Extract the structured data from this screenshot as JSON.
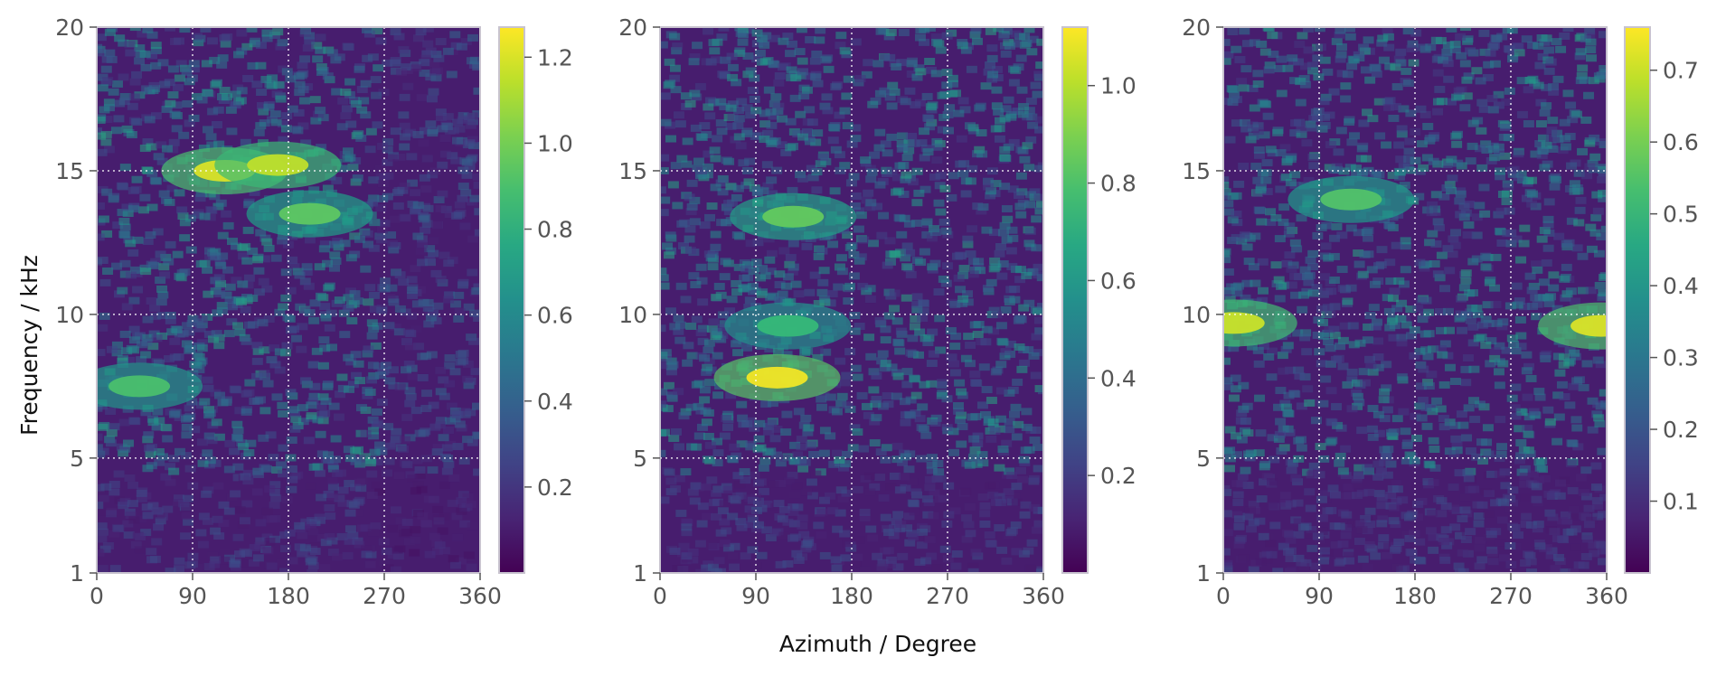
{
  "figure": {
    "xlabel": "Azimuth / Degree",
    "ylabel": "Frequency / kHz"
  },
  "chart_data": [
    {
      "type": "heatmap",
      "colormap": "viridis",
      "xlabel": "Azimuth / Degree",
      "ylabel": "Frequency / kHz",
      "xlim": [
        0,
        360
      ],
      "ylim": [
        1,
        20
      ],
      "xticks": [
        "0",
        "90",
        "180",
        "270",
        "360"
      ],
      "yticks": [
        "1",
        "5",
        "10",
        "15",
        "20"
      ],
      "grid": true,
      "colorbar": {
        "min": 0.0,
        "max": 1.27,
        "ticks": [
          "0.2",
          "0.4",
          "0.6",
          "0.8",
          "1.0",
          "1.2"
        ],
        "tick_values": [
          0.2,
          0.4,
          0.6,
          0.8,
          1.0,
          1.2
        ]
      },
      "features": [
        {
          "azimuth": 120,
          "frequency": 15,
          "value": 1.2
        },
        {
          "azimuth": 170,
          "frequency": 15.2,
          "value": 1.15
        },
        {
          "azimuth": 40,
          "frequency": 7.5,
          "value": 0.9
        },
        {
          "azimuth": 200,
          "frequency": 13.5,
          "value": 0.95
        }
      ]
    },
    {
      "type": "heatmap",
      "colormap": "viridis",
      "xlim": [
        0,
        360
      ],
      "ylim": [
        1,
        20
      ],
      "xticks": [
        "0",
        "90",
        "180",
        "270",
        "360"
      ],
      "yticks": [
        "1",
        "5",
        "10",
        "15",
        "20"
      ],
      "grid": true,
      "colorbar": {
        "min": 0.0,
        "max": 1.12,
        "ticks": [
          "0.2",
          "0.4",
          "0.6",
          "0.8",
          "1.0"
        ],
        "tick_values": [
          0.2,
          0.4,
          0.6,
          0.8,
          1.0
        ]
      },
      "features": [
        {
          "azimuth": 110,
          "frequency": 7.8,
          "value": 1.1
        },
        {
          "azimuth": 125,
          "frequency": 13.4,
          "value": 0.85
        },
        {
          "azimuth": 120,
          "frequency": 9.6,
          "value": 0.75
        }
      ]
    },
    {
      "type": "heatmap",
      "colormap": "viridis",
      "xlim": [
        0,
        360
      ],
      "ylim": [
        1,
        20
      ],
      "xticks": [
        "0",
        "90",
        "180",
        "270",
        "360"
      ],
      "yticks": [
        "1",
        "5",
        "10",
        "15",
        "20"
      ],
      "grid": true,
      "colorbar": {
        "min": 0.0,
        "max": 0.76,
        "ticks": [
          "0.1",
          "0.2",
          "0.3",
          "0.4",
          "0.5",
          "0.6",
          "0.7"
        ],
        "tick_values": [
          0.1,
          0.2,
          0.3,
          0.4,
          0.5,
          0.6,
          0.7
        ]
      },
      "features": [
        {
          "azimuth": 10,
          "frequency": 9.7,
          "value": 0.7
        },
        {
          "azimuth": 355,
          "frequency": 9.6,
          "value": 0.72
        },
        {
          "azimuth": 120,
          "frequency": 14,
          "value": 0.55
        }
      ]
    }
  ]
}
